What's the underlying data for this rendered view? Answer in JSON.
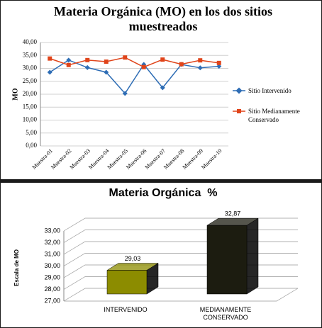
{
  "chart_data": [
    {
      "type": "line",
      "title": "Materia Orgánica (MO) en los dos sitios muestreados",
      "y_label": "MO",
      "categories": [
        "Muestra-01",
        "Muestra-02",
        "Muestra-03",
        "Muestra-04",
        "Muestra-05",
        "Muestra-06",
        "Muestra-07",
        "Muestra-08",
        "Muestra-09",
        "Muestra-10"
      ],
      "series": [
        {
          "name": "Sitio Intervenido",
          "color": "#2e6db5",
          "marker": "diamond",
          "values": [
            28.5,
            33.2,
            30.3,
            28.5,
            20.3,
            31.5,
            22.5,
            31.5,
            30.2,
            30.8
          ]
        },
        {
          "name": "Sitio Medianamente Conservado",
          "color": "#e0441a",
          "marker": "square",
          "values": [
            33.8,
            31.3,
            33.2,
            32.6,
            34.2,
            30.5,
            33.4,
            31.6,
            33.1,
            32.1
          ]
        }
      ],
      "ylim": [
        0,
        40
      ],
      "yticks": [
        {
          "value": 0,
          "label": "0,00"
        },
        {
          "value": 5,
          "label": "5,00"
        },
        {
          "value": 10,
          "label": "10,00"
        },
        {
          "value": 15,
          "label": "15,00"
        },
        {
          "value": 20,
          "label": "20,00"
        },
        {
          "value": 25,
          "label": "25,00"
        },
        {
          "value": 30,
          "label": "30,00"
        },
        {
          "value": 35,
          "label": "35,00"
        },
        {
          "value": 40,
          "label": "40,00"
        }
      ],
      "grid": true,
      "legend": "right"
    },
    {
      "type": "bar3d",
      "title": "Materia Orgánica  %",
      "y_label": "Escala de MO",
      "categories": [
        "INTERVENIDO",
        "MEDIANAMENTE CONSERVADO"
      ],
      "values": [
        29.03,
        32.87
      ],
      "value_labels": [
        "29,03",
        "32,87"
      ],
      "colors": [
        "#8c8c00",
        "#1c1c10"
      ],
      "ylim": [
        27,
        33
      ],
      "yticks": [
        {
          "value": 27,
          "label": "27,00"
        },
        {
          "value": 28,
          "label": "28,00"
        },
        {
          "value": 29,
          "label": "29,00"
        },
        {
          "value": 30,
          "label": "30,00"
        },
        {
          "value": 31,
          "label": "31,00"
        },
        {
          "value": 32,
          "label": "32,00"
        },
        {
          "value": 33,
          "label": "33,00"
        }
      ],
      "grid": true
    }
  ]
}
